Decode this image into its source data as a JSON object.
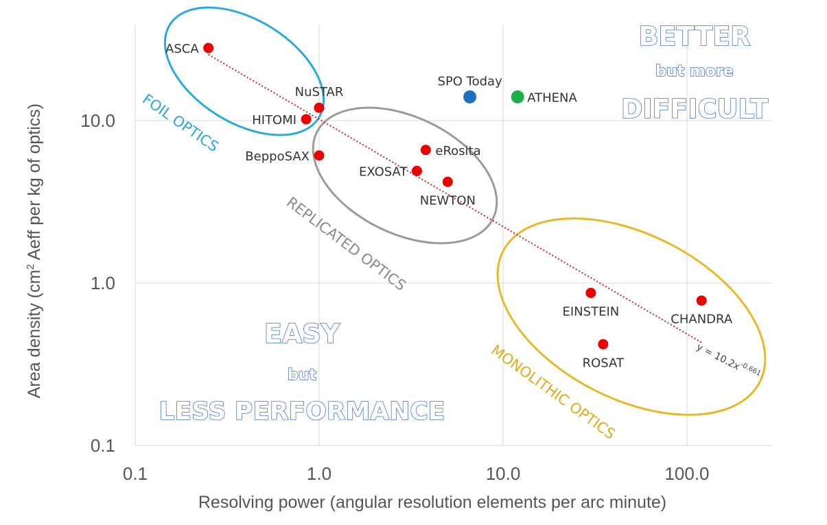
{
  "chart_data": {
    "type": "scatter",
    "x_scale": "log",
    "y_scale": "log",
    "xlim": [
      0.1,
      300
    ],
    "ylim": [
      0.1,
      40
    ],
    "xlabel": "Resolving power (angular resolution elements per arc minute)",
    "ylabel_main": "Area density (cm",
    "ylabel_sup": "2",
    "ylabel_rest": " Aeff per kg of optics)",
    "x_ticks": [
      {
        "value": 0.1,
        "label": "0.1"
      },
      {
        "value": 1,
        "label": "1.0"
      },
      {
        "value": 10,
        "label": "10.0"
      },
      {
        "value": 100,
        "label": "100.0"
      }
    ],
    "y_ticks": [
      {
        "value": 0.1,
        "label": "0.1"
      },
      {
        "value": 1,
        "label": "1.0"
      },
      {
        "value": 10,
        "label": "10.0"
      }
    ],
    "colors": {
      "red": "#ee0000",
      "blue": "#1f6fc0",
      "green": "#1fae4a",
      "grid": "#d9d9d9",
      "trend": "#d02020"
    },
    "points": [
      {
        "name": "ASCA",
        "x": 0.25,
        "y": 28,
        "color": "red",
        "label_pos": "left"
      },
      {
        "name": "NuSTAR",
        "x": 1.0,
        "y": 12,
        "color": "red",
        "label_pos": "above"
      },
      {
        "name": "HITOMI",
        "x": 0.85,
        "y": 10.2,
        "color": "red",
        "label_pos": "left"
      },
      {
        "name": "BeppoSAX",
        "x": 1.0,
        "y": 6.1,
        "color": "red",
        "label_pos": "left"
      },
      {
        "name": "eRosita",
        "x": 3.8,
        "y": 6.6,
        "color": "red",
        "label_pos": "right"
      },
      {
        "name": "EXOSAT",
        "x": 3.4,
        "y": 4.9,
        "color": "red",
        "label_pos": "left"
      },
      {
        "name": "NEWTON",
        "x": 5.0,
        "y": 4.2,
        "color": "red",
        "label_pos": "below"
      },
      {
        "name": "SPO Today",
        "x": 6.6,
        "y": 14,
        "color": "blue",
        "label_pos": "above"
      },
      {
        "name": "ATHENA",
        "x": 12,
        "y": 14,
        "color": "green",
        "label_pos": "right"
      },
      {
        "name": "EINSTEIN",
        "x": 30,
        "y": 0.87,
        "color": "red",
        "label_pos": "below"
      },
      {
        "name": "CHANDRA",
        "x": 120,
        "y": 0.78,
        "color": "red",
        "label_pos": "below"
      },
      {
        "name": "ROSAT",
        "x": 35,
        "y": 0.42,
        "color": "red",
        "label_pos": "below"
      }
    ],
    "trendline": {
      "equation_prefix": "y = 10.2x",
      "equation_exp": "-0.661",
      "coef": 10.2,
      "exponent": -0.661,
      "x_range": [
        0.25,
        120
      ]
    },
    "regions": [
      {
        "label": "FOIL OPTICS",
        "color": "#29a9dc"
      },
      {
        "label": "REPLICATED OPTICS",
        "color": "#9a9a9a"
      },
      {
        "label": "MONOLITHIC OPTICS",
        "color": "#e8b828"
      }
    ],
    "callouts": {
      "better_line1": "BETTER",
      "better_line2": "but more",
      "better_line3": "DIFFICULT",
      "easy_line1": "EASY",
      "easy_line2": "but",
      "easy_line3": "LESS PERFORMANCE"
    }
  }
}
